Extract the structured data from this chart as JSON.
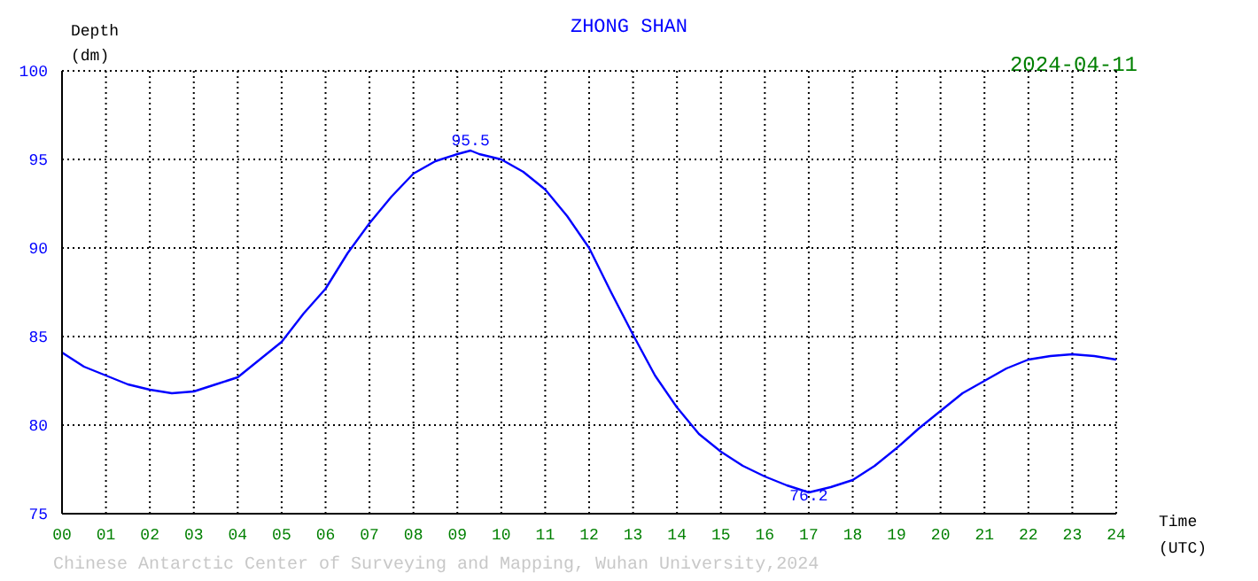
{
  "chart_data": {
    "type": "line",
    "title": "ZHONG SHAN",
    "subtitle": "2024-04-11",
    "xlabel": "Time (UTC)",
    "ylabel": "Depth (dm)",
    "x": [
      0,
      0.5,
      1,
      1.5,
      2,
      2.5,
      3,
      3.5,
      4,
      4.5,
      5,
      5.5,
      6,
      6.5,
      7,
      7.5,
      8,
      8.5,
      9,
      9.3,
      9.5,
      10,
      10.5,
      11,
      11.5,
      12,
      12.5,
      13,
      13.5,
      14,
      14.5,
      15,
      15.5,
      16,
      16.5,
      17,
      17.5,
      18,
      18.5,
      19,
      19.5,
      20,
      20.5,
      21,
      21.5,
      22,
      22.5,
      23,
      23.5,
      24
    ],
    "series": [
      {
        "color": "#0000ff",
        "values": [
          84.1,
          83.3,
          82.8,
          82.3,
          82.0,
          81.8,
          81.9,
          82.3,
          82.7,
          83.7,
          84.7,
          86.3,
          87.7,
          89.7,
          91.4,
          92.9,
          94.2,
          94.9,
          95.3,
          95.5,
          95.3,
          95.0,
          94.3,
          93.3,
          91.8,
          90.0,
          87.5,
          85.1,
          82.8,
          81.0,
          79.5,
          78.5,
          77.7,
          77.1,
          76.6,
          76.2,
          76.5,
          76.9,
          77.7,
          78.7,
          79.8,
          80.8,
          81.8,
          82.5,
          83.2,
          83.7,
          83.9,
          84.0,
          83.9,
          83.7
        ]
      }
    ],
    "xlim": [
      0,
      24
    ],
    "xticks": [
      {
        "value": 0,
        "label": "00"
      },
      {
        "value": 1,
        "label": "01"
      },
      {
        "value": 2,
        "label": "02"
      },
      {
        "value": 3,
        "label": "03"
      },
      {
        "value": 4,
        "label": "04"
      },
      {
        "value": 5,
        "label": "05"
      },
      {
        "value": 6,
        "label": "06"
      },
      {
        "value": 7,
        "label": "07"
      },
      {
        "value": 8,
        "label": "08"
      },
      {
        "value": 9,
        "label": "09"
      },
      10,
      11,
      12,
      13,
      14,
      15,
      16,
      17,
      18,
      19,
      20,
      21,
      22,
      23,
      24
    ],
    "ylim": [
      75,
      100
    ],
    "yticks": [
      75,
      80,
      85,
      90,
      95,
      100
    ],
    "grid": true,
    "marker": "none",
    "line_style": "solid",
    "annotations": [
      {
        "text": "95.5",
        "x": 9.3,
        "y": 95.5
      },
      {
        "text": "76.2",
        "x": 17,
        "y": 76.2
      },
      "Chinese Antarctic Center of Surveying and Mapping, Wuhan University,2024"
    ]
  }
}
